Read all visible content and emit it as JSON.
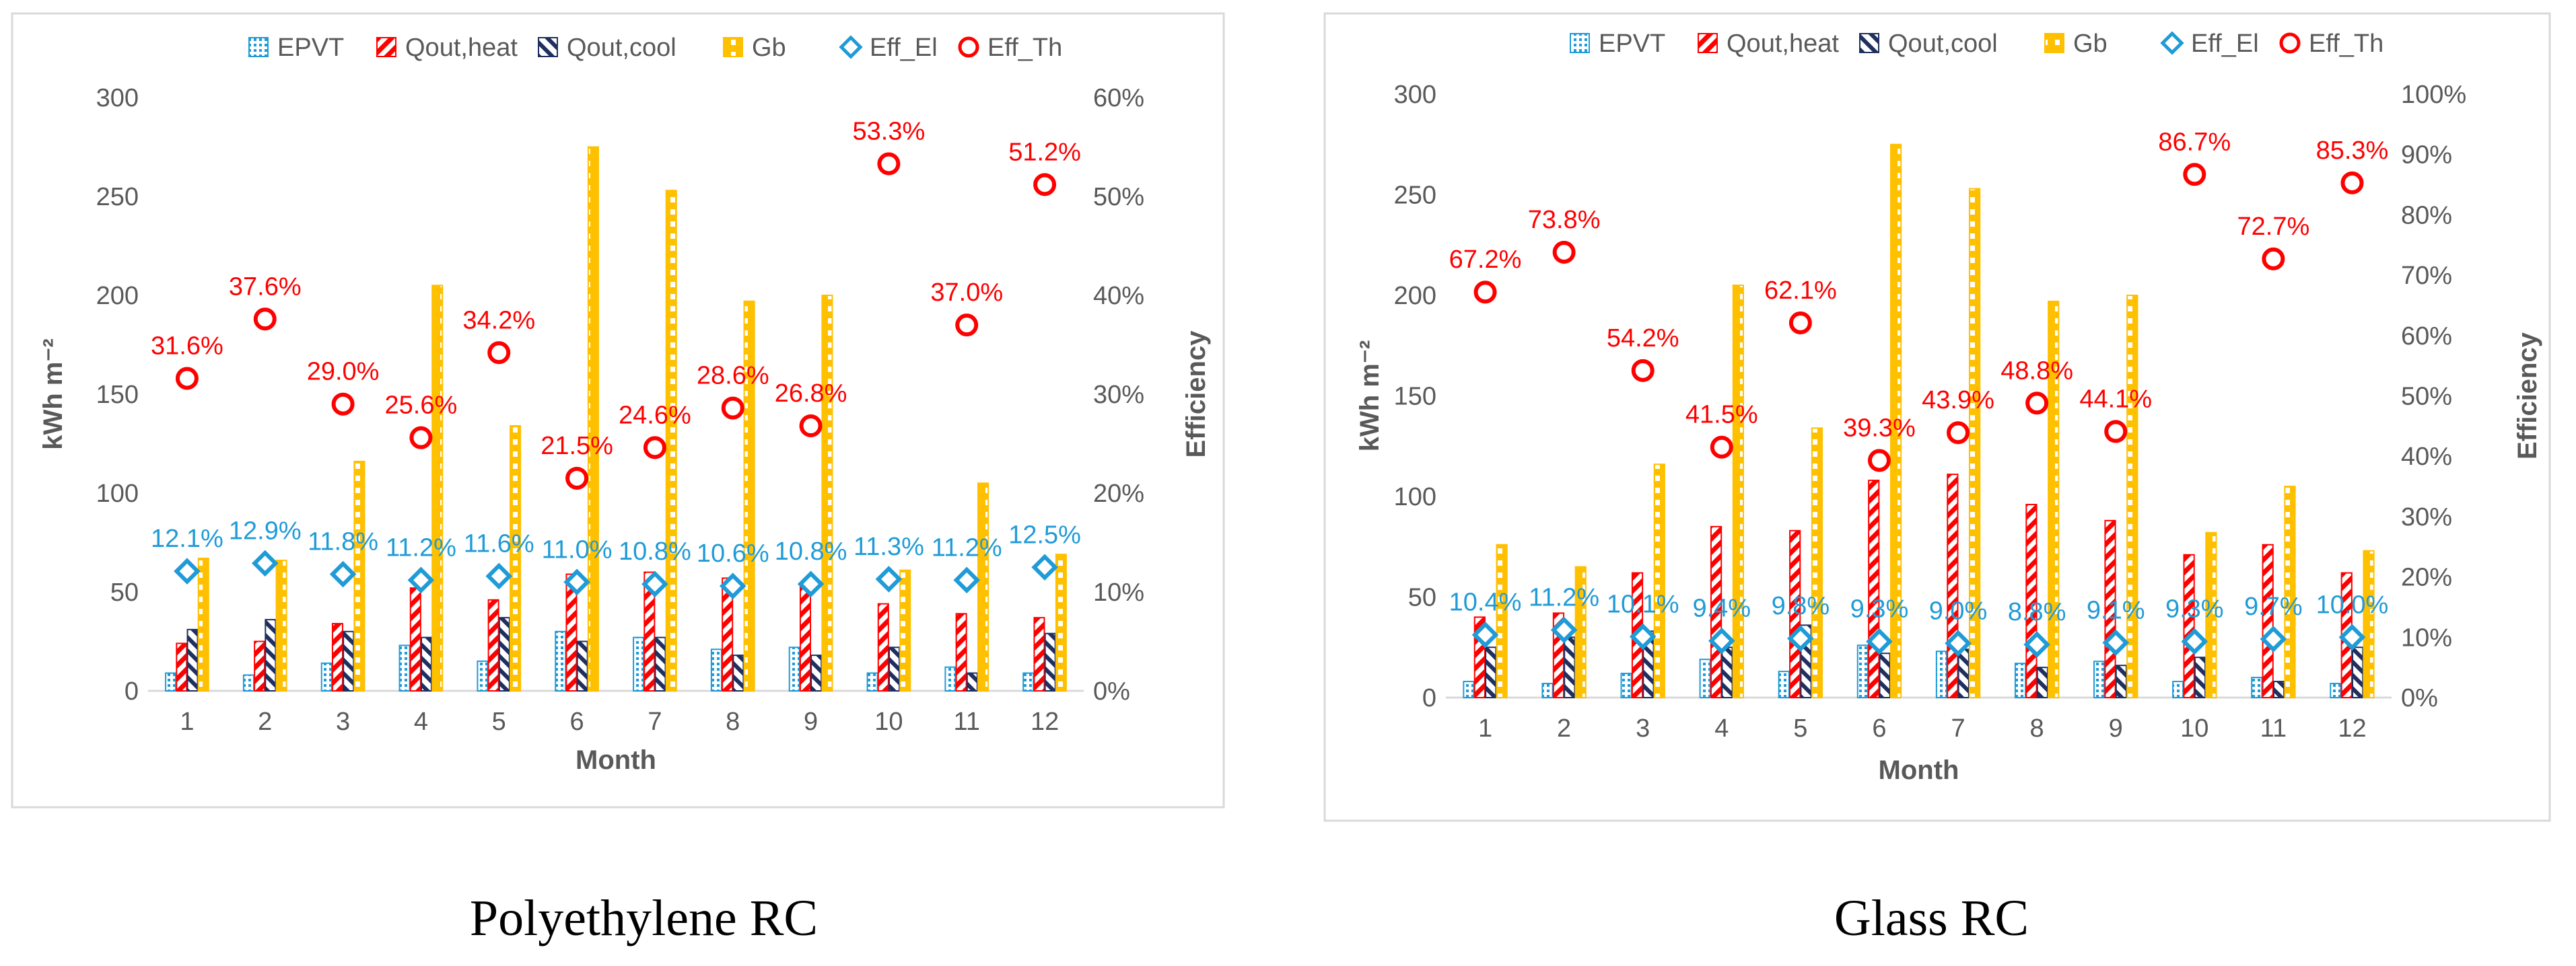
{
  "chart_data": [
    {
      "type": "bar",
      "panel": "left",
      "caption": "Polyethylene RC",
      "xlabel": "Month",
      "ylabel": "kWh m⁻²",
      "y2label": "Efficiency",
      "ylim": [
        0,
        300
      ],
      "y2lim": [
        0,
        0.6
      ],
      "yticks": [
        "0",
        "50",
        "100",
        "150",
        "200",
        "250",
        "300"
      ],
      "y2ticks": [
        "0%",
        "10%",
        "20%",
        "30%",
        "40%",
        "50%",
        "60%"
      ],
      "categories": [
        "1",
        "2",
        "3",
        "4",
        "5",
        "6",
        "7",
        "8",
        "9",
        "10",
        "11",
        "12"
      ],
      "series": [
        {
          "name": "EPVT",
          "kind": "bar",
          "color": "#1f9bd7",
          "values": [
            9,
            8,
            14,
            23,
            15,
            30,
            27,
            21,
            22,
            9,
            12,
            9
          ]
        },
        {
          "name": "Qout,heat",
          "kind": "bar",
          "color": "#ff0000",
          "values": [
            24,
            25,
            34,
            52,
            46,
            59,
            60,
            57,
            53,
            44,
            39,
            37
          ]
        },
        {
          "name": "Qout,cool",
          "kind": "bar",
          "color": "#1f2f5f",
          "values": [
            31,
            36,
            30,
            27,
            37,
            25,
            27,
            18,
            18,
            22,
            9,
            29
          ]
        },
        {
          "name": "Gb",
          "kind": "bar",
          "color": "#ffc000",
          "values": [
            67,
            66,
            116,
            205,
            134,
            275,
            253,
            197,
            200,
            61,
            105,
            69
          ]
        },
        {
          "name": "Eff_El",
          "kind": "marker",
          "color": "#1f9bd7",
          "values": [
            12.1,
            12.9,
            11.8,
            11.2,
            11.6,
            11.0,
            10.8,
            10.6,
            10.8,
            11.3,
            11.2,
            12.5
          ],
          "labels": [
            "12.1%",
            "12.9%",
            "11.8%",
            "11.2%",
            "11.6%",
            "11.0%",
            "10.8%",
            "10.6%",
            "10.8%",
            "11.3%",
            "11.2%",
            "12.5%"
          ]
        },
        {
          "name": "Eff_Th",
          "kind": "marker",
          "color": "#ff0000",
          "values": [
            31.6,
            37.6,
            29.0,
            25.6,
            34.2,
            21.5,
            24.6,
            28.6,
            26.8,
            53.3,
            37.0,
            51.2
          ],
          "labels": [
            "31.6%",
            "37.6%",
            "29.0%",
            "25.6%",
            "34.2%",
            "21.5%",
            "24.6%",
            "28.6%",
            "26.8%",
            "53.3%",
            "37.0%",
            "51.2%"
          ]
        }
      ]
    },
    {
      "type": "bar",
      "panel": "right",
      "caption": "Glass RC",
      "xlabel": "Month",
      "ylabel": "kWh m⁻²",
      "y2label": "Efficiency",
      "ylim": [
        0,
        300
      ],
      "y2lim": [
        0,
        1.0
      ],
      "yticks": [
        "0",
        "50",
        "100",
        "150",
        "200",
        "250",
        "300"
      ],
      "y2ticks": [
        "0%",
        "10%",
        "20%",
        "30%",
        "40%",
        "50%",
        "60%",
        "70%",
        "80%",
        "90%",
        "100%"
      ],
      "categories": [
        "1",
        "2",
        "3",
        "4",
        "5",
        "6",
        "7",
        "8",
        "9",
        "10",
        "11",
        "12"
      ],
      "series": [
        {
          "name": "EPVT",
          "kind": "bar",
          "color": "#1f9bd7",
          "values": [
            8,
            7,
            12,
            19,
            13,
            26,
            23,
            17,
            18,
            8,
            10,
            7
          ]
        },
        {
          "name": "Qout,heat",
          "kind": "bar",
          "color": "#ff0000",
          "values": [
            40,
            42,
            62,
            85,
            83,
            108,
            111,
            96,
            88,
            71,
            76,
            62
          ]
        },
        {
          "name": "Qout,cool",
          "kind": "bar",
          "color": "#1f2f5f",
          "values": [
            25,
            30,
            33,
            25,
            36,
            22,
            24,
            15,
            16,
            20,
            8,
            25
          ]
        },
        {
          "name": "Gb",
          "kind": "bar",
          "color": "#ffc000",
          "values": [
            76,
            65,
            116,
            205,
            134,
            275,
            253,
            197,
            200,
            82,
            105,
            73
          ]
        },
        {
          "name": "Eff_El",
          "kind": "marker",
          "color": "#1f9bd7",
          "values": [
            10.4,
            11.2,
            10.1,
            9.4,
            9.8,
            9.3,
            9.0,
            8.8,
            9.1,
            9.3,
            9.7,
            10.0
          ],
          "labels": [
            "10.4%",
            "11.2%",
            "10.1%",
            "9.4%",
            "9.8%",
            "9.3%",
            "9.0%",
            "8.8%",
            "9.1%",
            "9.3%",
            "9.7%",
            "10.0%"
          ]
        },
        {
          "name": "Eff_Th",
          "kind": "marker",
          "color": "#ff0000",
          "values": [
            67.2,
            73.8,
            54.2,
            41.5,
            62.1,
            39.3,
            43.9,
            48.8,
            44.1,
            86.7,
            72.7,
            85.3
          ],
          "labels": [
            "67.2%",
            "73.8%",
            "54.2%",
            "41.5%",
            "62.1%",
            "39.3%",
            "43.9%",
            "48.8%",
            "44.1%",
            "86.7%",
            "72.7%",
            "85.3%"
          ]
        }
      ]
    }
  ]
}
